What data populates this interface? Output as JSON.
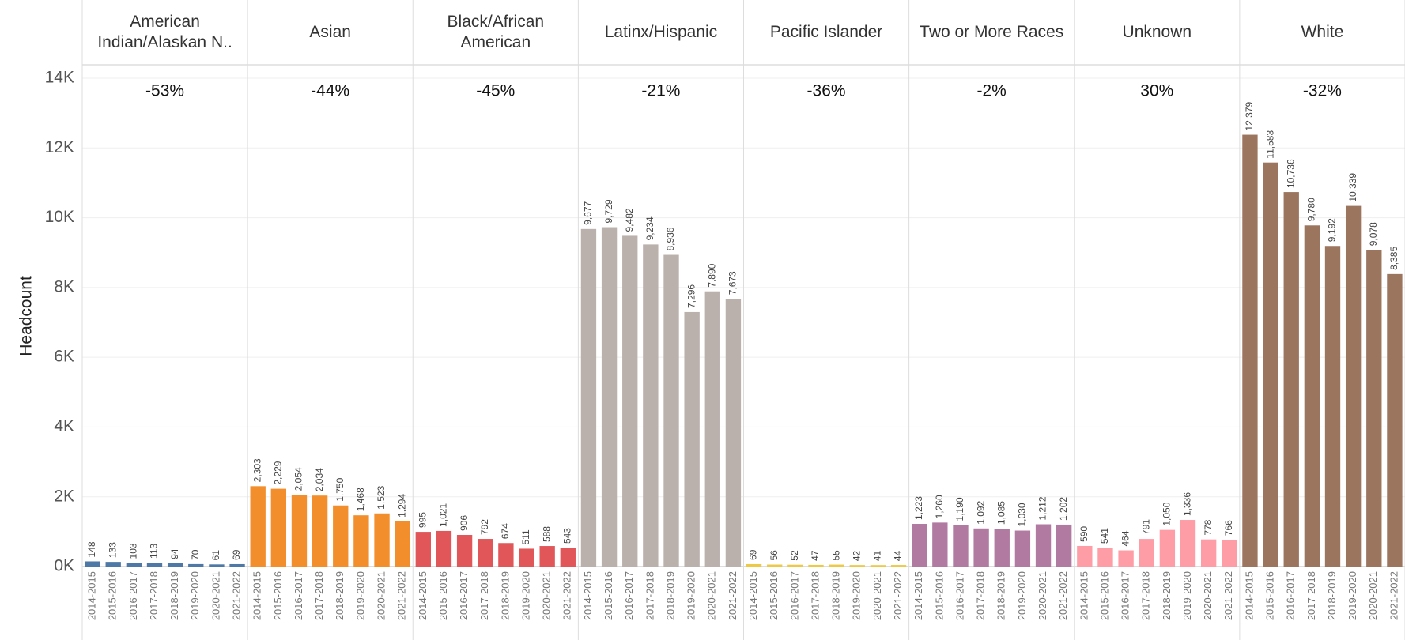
{
  "chart_data": {
    "type": "bar",
    "y_label": "Headcount",
    "categories": [
      "2014-2015",
      "2015-2016",
      "2016-2017",
      "2017-2018",
      "2018-2019",
      "2019-2020",
      "2020-2021",
      "2021-2022"
    ],
    "ylim": [
      0,
      14000
    ],
    "yticks": [
      {
        "value": 0,
        "label": "0K"
      },
      {
        "value": 2000,
        "label": "2K"
      },
      {
        "value": 4000,
        "label": "4K"
      },
      {
        "value": 6000,
        "label": "6K"
      },
      {
        "value": 8000,
        "label": "8K"
      },
      {
        "value": 10000,
        "label": "10K"
      },
      {
        "value": 12000,
        "label": "12K"
      },
      {
        "value": 14000,
        "label": "14K"
      }
    ],
    "grid": true,
    "series": [
      {
        "name": "American Indian/Alaskan N..",
        "color": "#4e79a7",
        "change": -53,
        "change_label": "-53%",
        "values": [
          148,
          133,
          103,
          113,
          94,
          70,
          61,
          69
        ]
      },
      {
        "name": "Asian",
        "color": "#f28e2b",
        "change": -44,
        "change_label": "-44%",
        "values": [
          2303,
          2229,
          2054,
          2034,
          1750,
          1468,
          1523,
          1294
        ],
        "value_labels": [
          "2,303",
          "2,229",
          "2,054",
          "2,034",
          "1,750",
          "1,468",
          "1,523",
          "1,294"
        ]
      },
      {
        "name": "Black/African American",
        "color": "#e15759",
        "change": -45,
        "change_label": "-45%",
        "values": [
          995,
          1021,
          906,
          792,
          674,
          511,
          588,
          543
        ],
        "value_labels": [
          "995",
          "1,021",
          "906",
          "792",
          "674",
          "511",
          "588",
          "543"
        ]
      },
      {
        "name": "Latinx/Hispanic",
        "color": "#bab0ac",
        "change": -21,
        "change_label": "-21%",
        "values": [
          9677,
          9729,
          9482,
          9234,
          8936,
          7296,
          7890,
          7673
        ],
        "value_labels": [
          "9,677",
          "9,729",
          "9,482",
          "9,234",
          "8,936",
          "7,296",
          "7,890",
          "7,673"
        ]
      },
      {
        "name": "Pacific Islander",
        "color": "#edc948",
        "change": -36,
        "change_label": "-36%",
        "values": [
          69,
          56,
          52,
          47,
          55,
          42,
          41,
          44
        ]
      },
      {
        "name": "Two or More Races",
        "color": "#b07aa1",
        "change": -2,
        "change_label": "-2%",
        "values": [
          1223,
          1260,
          1190,
          1092,
          1085,
          1030,
          1212,
          1202
        ],
        "value_labels": [
          "1,223",
          "1,260",
          "1,190",
          "1,092",
          "1,085",
          "1,030",
          "1,212",
          "1,202"
        ]
      },
      {
        "name": "Unknown",
        "color": "#ff9da7",
        "change": 30,
        "change_label": "30%",
        "values": [
          590,
          541,
          464,
          791,
          1050,
          1336,
          778,
          766
        ],
        "value_labels": [
          "590",
          "541",
          "464",
          "791",
          "1,050",
          "1,336",
          "778",
          "766"
        ]
      },
      {
        "name": "White",
        "color": "#9c755f",
        "change": -32,
        "change_label": "-32%",
        "values": [
          12379,
          11583,
          10736,
          9780,
          9192,
          10339,
          9078,
          8385
        ],
        "value_labels": [
          "12,379",
          "11,583",
          "10,736",
          "9,780",
          "9,192",
          "10,339",
          "9,078",
          "8,385"
        ]
      }
    ]
  }
}
